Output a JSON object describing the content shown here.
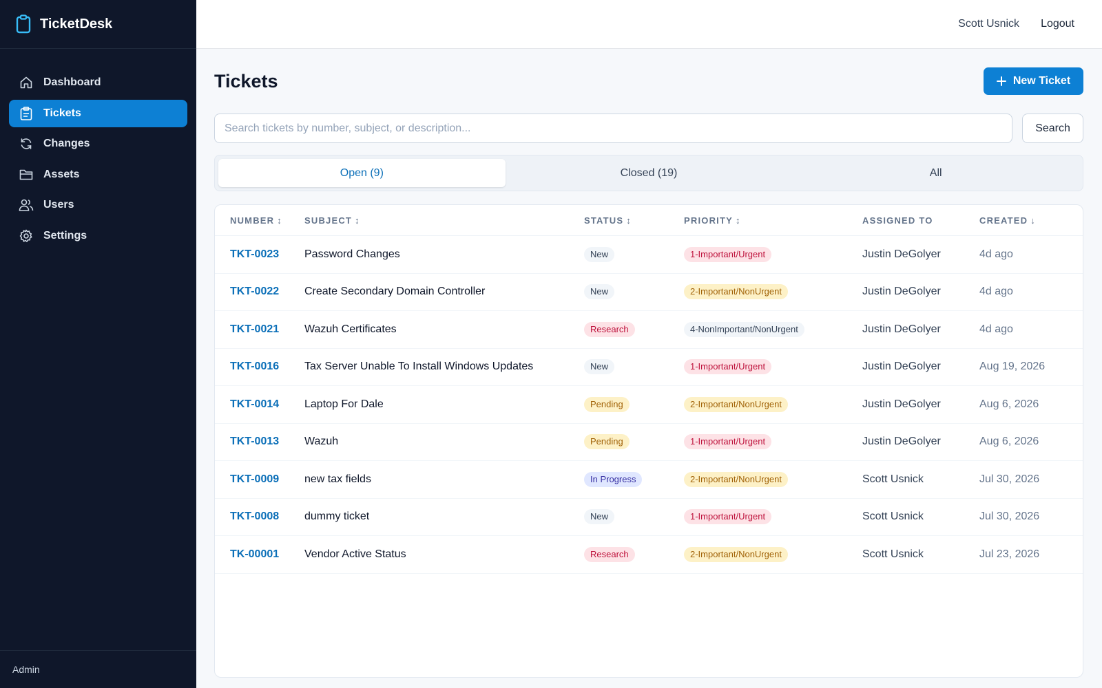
{
  "app": {
    "title": "TicketDesk",
    "logo_icon": "clipboard-icon",
    "accent": "#0d80d4"
  },
  "sidebar": {
    "items": [
      {
        "label": "Dashboard",
        "icon": "home-icon"
      },
      {
        "label": "Tickets",
        "icon": "clipboard-icon",
        "active": true
      },
      {
        "label": "Changes",
        "icon": "refresh-icon"
      },
      {
        "label": "Assets",
        "icon": "folder-icon"
      },
      {
        "label": "Users",
        "icon": "users-icon"
      },
      {
        "label": "Settings",
        "icon": "gear-icon"
      }
    ],
    "footer": "Admin"
  },
  "header": {
    "user": "Scott Usnick",
    "logout": "Logout"
  },
  "page": {
    "title": "Tickets",
    "new_button": "New Ticket"
  },
  "search": {
    "placeholder": "Search tickets by number, subject, or description...",
    "value": "",
    "button": "Search"
  },
  "tabs": [
    {
      "label": "Open (9)",
      "active": true
    },
    {
      "label": "Closed (19)"
    },
    {
      "label": "All"
    }
  ],
  "table": {
    "columns": [
      {
        "label": "NUMBER",
        "sort": "↕"
      },
      {
        "label": "SUBJECT",
        "sort": "↕"
      },
      {
        "label": "STATUS",
        "sort": "↕"
      },
      {
        "label": "PRIORITY",
        "sort": "↕"
      },
      {
        "label": "ASSIGNED TO",
        "sort": ""
      },
      {
        "label": "CREATED",
        "sort": "↓"
      }
    ],
    "rows": [
      {
        "number": "TKT-0023",
        "subject": "Password Changes",
        "status": "New",
        "priority": "1-Important/Urgent",
        "assigned": "Justin DeGolyer",
        "created": "4d ago"
      },
      {
        "number": "TKT-0022",
        "subject": "Create Secondary Domain Controller",
        "status": "New",
        "priority": "2-Important/NonUrgent",
        "assigned": "Justin DeGolyer",
        "created": "4d ago"
      },
      {
        "number": "TKT-0021",
        "subject": "Wazuh Certificates",
        "status": "Research",
        "priority": "4-NonImportant/NonUrgent",
        "assigned": "Justin DeGolyer",
        "created": "4d ago"
      },
      {
        "number": "TKT-0016",
        "subject": "Tax Server Unable To Install Windows Updates",
        "status": "New",
        "priority": "1-Important/Urgent",
        "assigned": "Justin DeGolyer",
        "created": "Aug 19, 2026"
      },
      {
        "number": "TKT-0014",
        "subject": "Laptop For Dale",
        "status": "Pending",
        "priority": "2-Important/NonUrgent",
        "assigned": "Justin DeGolyer",
        "created": "Aug 6, 2026"
      },
      {
        "number": "TKT-0013",
        "subject": "Wazuh",
        "status": "Pending",
        "priority": "1-Important/Urgent",
        "assigned": "Justin DeGolyer",
        "created": "Aug 6, 2026"
      },
      {
        "number": "TKT-0009",
        "subject": "new tax fields",
        "status": "In Progress",
        "priority": "2-Important/NonUrgent",
        "assigned": "Scott Usnick",
        "created": "Jul 30, 2026"
      },
      {
        "number": "TKT-0008",
        "subject": "dummy ticket",
        "status": "New",
        "priority": "1-Important/Urgent",
        "assigned": "Scott Usnick",
        "created": "Jul 30, 2026"
      },
      {
        "number": "TK-00001",
        "subject": "Vendor Active Status",
        "status": "Research",
        "priority": "2-Important/NonUrgent",
        "assigned": "Scott Usnick",
        "created": "Jul 23, 2026"
      }
    ]
  }
}
